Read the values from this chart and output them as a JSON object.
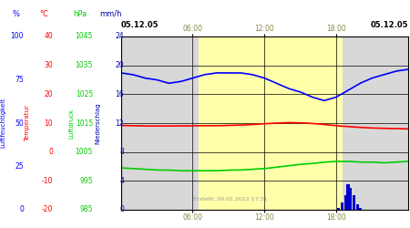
{
  "date_label_left": "05.12.05",
  "date_label_right": "05.12.05",
  "created_label": "Erstellt: 09.01.2012 17:31",
  "x_tick_labels": [
    "06:00",
    "12:00",
    "18:00"
  ],
  "x_tick_pos": [
    6,
    12,
    18
  ],
  "bg_grey": "#d8d8d8",
  "bg_yellow": "#ffffaa",
  "fig_bg": "#ffffff",
  "humidity_color": "#0000ff",
  "temperature_color": "#ff0000",
  "green_color": "#00cc00",
  "precip_color": "#0000cc",
  "grid_color": "#000000",
  "hum_key_x": [
    0,
    1,
    2,
    3,
    4,
    5,
    6,
    7,
    8,
    9,
    10,
    11,
    12,
    13,
    14,
    15,
    16,
    17,
    18,
    19,
    20,
    21,
    22,
    23,
    24
  ],
  "hum_key_y": [
    79,
    78,
    76,
    75,
    73,
    74,
    76,
    78,
    79,
    79,
    79,
    78,
    76,
    73,
    70,
    68,
    65,
    63,
    65,
    69,
    73,
    76,
    78,
    80,
    81
  ],
  "temp_key_x": [
    0,
    1,
    2,
    3,
    4,
    5,
    6,
    7,
    8,
    9,
    10,
    11,
    12,
    13,
    14,
    15,
    16,
    17,
    18,
    19,
    20,
    21,
    22,
    23,
    24
  ],
  "temp_key_y": [
    9.2,
    9.1,
    9.0,
    9.0,
    9.0,
    9.0,
    9.1,
    9.1,
    9.1,
    9.2,
    9.3,
    9.5,
    9.8,
    10.0,
    10.2,
    10.1,
    9.9,
    9.5,
    9.1,
    8.8,
    8.5,
    8.3,
    8.2,
    8.1,
    8.0
  ],
  "green_key_x": [
    0,
    1,
    2,
    3,
    4,
    5,
    6,
    7,
    8,
    9,
    10,
    11,
    12,
    13,
    14,
    15,
    16,
    17,
    18,
    19,
    20,
    21,
    22,
    23,
    24
  ],
  "green_key_y": [
    5.8,
    5.7,
    5.6,
    5.5,
    5.5,
    5.4,
    5.4,
    5.4,
    5.4,
    5.5,
    5.5,
    5.6,
    5.7,
    5.9,
    6.1,
    6.3,
    6.4,
    6.6,
    6.7,
    6.7,
    6.6,
    6.6,
    6.5,
    6.6,
    6.7
  ],
  "precip_x": [
    18.2,
    18.5,
    18.8,
    19.0,
    19.2,
    19.5,
    19.8,
    20.0
  ],
  "precip_h": [
    0.3,
    1.0,
    2.0,
    3.5,
    3.0,
    2.0,
    0.8,
    0.2
  ],
  "col1_vals": [
    "100",
    "",
    "75",
    "",
    "50",
    "",
    "25",
    "",
    "0"
  ],
  "col2_vals": [
    "40",
    "30",
    "",
    "20",
    "10",
    "0",
    "",
    "-10",
    "-20"
  ],
  "col3_vals": [
    "1045",
    "1035",
    "",
    "1025",
    "1015",
    "1005",
    "",
    "995",
    "985"
  ],
  "col4_vals": [
    "24",
    "20",
    "",
    "16",
    "12",
    "8",
    "",
    "4",
    "0"
  ],
  "y_norms": [
    1.0,
    0.833,
    0.75,
    0.667,
    0.5,
    0.333,
    0.25,
    0.167,
    0.0
  ]
}
